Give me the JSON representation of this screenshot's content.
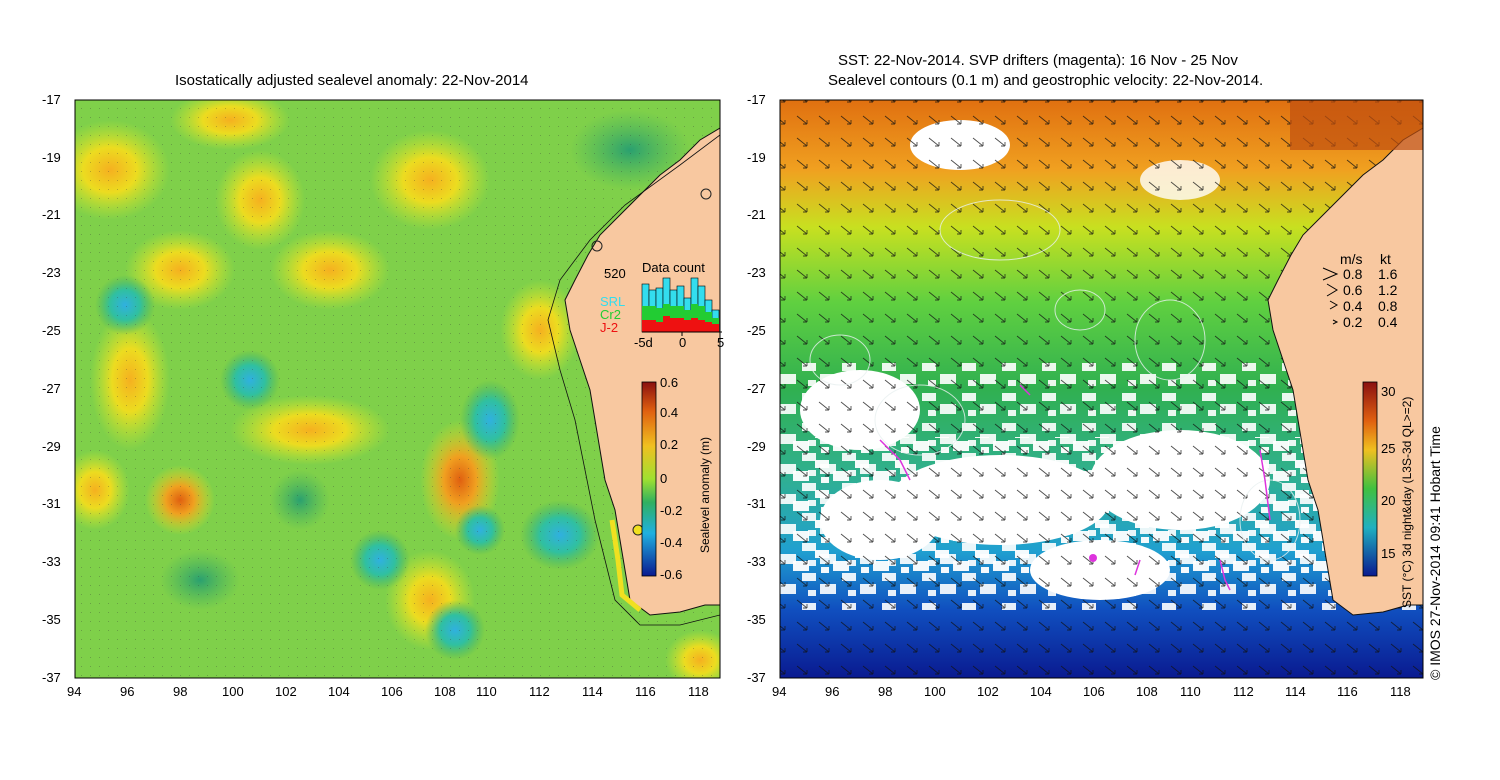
{
  "left_panel": {
    "title": "Isostatically adjusted sealevel anomaly: 22-Nov-2014",
    "y_ticks": [
      "-17",
      "-19",
      "-21",
      "-23",
      "-25",
      "-27",
      "-29",
      "-31",
      "-33",
      "-35",
      "-37"
    ],
    "x_ticks": [
      "94",
      "96",
      "98",
      "100",
      "102",
      "104",
      "106",
      "108",
      "110",
      "112",
      "114",
      "116",
      "118"
    ],
    "data_count": {
      "title": "Data count",
      "total": "520",
      "legend": [
        {
          "label": "SRL",
          "color": "#33ddee"
        },
        {
          "label": "Cr2",
          "color": "#22cc33"
        },
        {
          "label": "J-2",
          "color": "#ee1111"
        }
      ],
      "x_ticks": [
        "-5d",
        "0",
        "5"
      ]
    },
    "colorbar": {
      "label": "Sealevel anomaly (m)",
      "ticks": [
        "0.6",
        "0.4",
        "0.2",
        "0",
        "-0.2",
        "-0.4",
        "-0.6"
      ]
    }
  },
  "right_panel": {
    "title_line1": "SST: 22-Nov-2014. SVP drifters (magenta): 16 Nov - 25 Nov",
    "title_line2": "Sealevel contours (0.1 m) and geostrophic velocity: 22-Nov-2014.",
    "y_ticks": [
      "-17",
      "-19",
      "-21",
      "-23",
      "-25",
      "-27",
      "-29",
      "-31",
      "-33",
      "-35",
      "-37"
    ],
    "x_ticks": [
      "94",
      "96",
      "98",
      "100",
      "102",
      "104",
      "106",
      "108",
      "110",
      "112",
      "114",
      "116",
      "118"
    ],
    "velocity_legend": {
      "header_ms": "m/s",
      "header_kt": "kt",
      "rows": [
        {
          "ms": "0.8",
          "kt": "1.6"
        },
        {
          "ms": "0.6",
          "kt": "1.2"
        },
        {
          "ms": "0.4",
          "kt": "0.8"
        },
        {
          "ms": "0.2",
          "kt": "0.4"
        }
      ]
    },
    "colorbar": {
      "label": "SST (°C) 3d night&day (L3S-3d QL>=2)",
      "ticks": [
        "30",
        "25",
        "20",
        "15"
      ]
    }
  },
  "copyright": "© IMOS 27-Nov-2014 09:41 Hobart Time",
  "colors": {
    "land": "#f8c8a0",
    "sla_mid": "#7fd04a",
    "sst_warm": "#e07a10",
    "sst_cool": "#1030a0",
    "drifter": "#dd33dd"
  }
}
